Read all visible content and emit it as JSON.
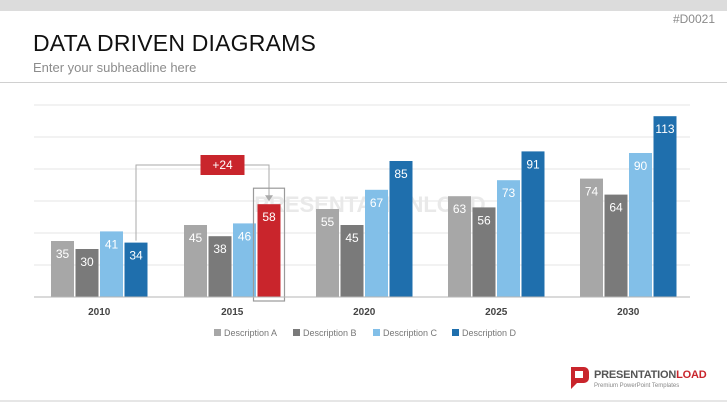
{
  "slide": {
    "id": "#D0021",
    "title": "DATA DRIVEN DIAGRAMS",
    "subtitle": "Enter your subheadline here",
    "watermark": "PRESENTATIONLOAD",
    "logo_prefix": "PRESENTATION",
    "logo_suffix": "LOAD",
    "logo_tagline": "Premium PowerPoint Templates"
  },
  "colors": {
    "series": [
      "#a7a7a7",
      "#7a7a7a",
      "#82bfe8",
      "#1f6fad"
    ],
    "highlight": "#c9252c",
    "grid": "#e5e5e5",
    "axis": "#b5b5b5"
  },
  "chart_data": {
    "type": "bar",
    "categories": [
      "2010",
      "2015",
      "2020",
      "2025",
      "2030"
    ],
    "series": [
      {
        "name": "Description A",
        "values": [
          35,
          45,
          55,
          63,
          74
        ]
      },
      {
        "name": "Description B",
        "values": [
          30,
          38,
          45,
          56,
          64
        ]
      },
      {
        "name": "Description C",
        "values": [
          41,
          46,
          67,
          73,
          90
        ]
      },
      {
        "name": "Description D",
        "values": [
          34,
          58,
          85,
          91,
          113
        ]
      }
    ],
    "ylim": [
      0,
      120
    ],
    "grid": true,
    "legend": "bottom",
    "highlight": {
      "category": "2015",
      "series": 3
    },
    "annotation": {
      "text": "+24",
      "from": {
        "category": "2010",
        "series": 3
      },
      "to": {
        "category": "2015",
        "series": 3
      }
    }
  }
}
